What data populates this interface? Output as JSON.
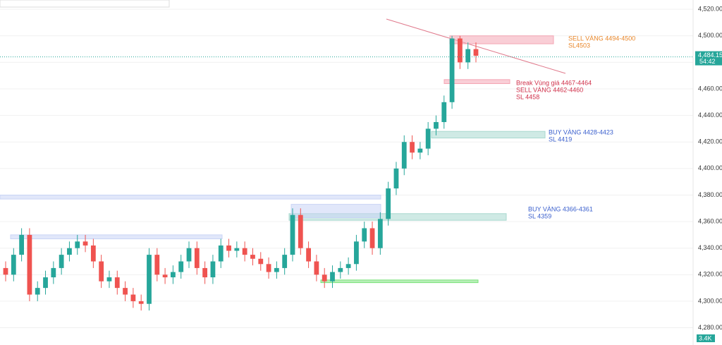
{
  "chart_data": {
    "type": "candlestick",
    "open": [
      4325,
      4320,
      4335,
      4350,
      4305,
      4310,
      4318,
      4325,
      4335,
      4340,
      4345,
      4342,
      4330,
      4315,
      4318,
      4310,
      4305,
      4300,
      4298,
      4335,
      4320,
      4318,
      4322,
      4330,
      4340,
      4325,
      4318,
      4330,
      4342,
      4338,
      4340,
      4335,
      4332,
      4328,
      4322,
      4325,
      4335,
      4365,
      4340,
      4330,
      4320,
      4315,
      4322,
      4325,
      4328,
      4345,
      4355,
      4340,
      4362,
      4385,
      4400,
      4420,
      4412,
      4415,
      4430,
      4435,
      4450,
      4498,
      4480,
      4490
    ],
    "high": [
      4330,
      4340,
      4355,
      4355,
      4315,
      4323,
      4330,
      4340,
      4345,
      4350,
      4350,
      4347,
      4335,
      4323,
      4323,
      4315,
      4310,
      4305,
      4340,
      4340,
      4325,
      4327,
      4335,
      4345,
      4345,
      4330,
      4335,
      4347,
      4347,
      4345,
      4345,
      4340,
      4337,
      4333,
      4330,
      4340,
      4370,
      4370,
      4345,
      4335,
      4325,
      4327,
      4330,
      4333,
      4350,
      4360,
      4360,
      4367,
      4390,
      4405,
      4425,
      4425,
      4420,
      4435,
      4440,
      4455,
      4500,
      4500,
      4495,
      4495
    ],
    "low": [
      4315,
      4315,
      4330,
      4300,
      4300,
      4305,
      4313,
      4320,
      4330,
      4335,
      4337,
      4325,
      4310,
      4310,
      4305,
      4300,
      4295,
      4293,
      4293,
      4315,
      4313,
      4313,
      4317,
      4325,
      4320,
      4313,
      4313,
      4325,
      4333,
      4333,
      4330,
      4327,
      4323,
      4317,
      4317,
      4320,
      4330,
      4335,
      4325,
      4315,
      4310,
      4310,
      4317,
      4320,
      4323,
      4340,
      4335,
      4335,
      4357,
      4380,
      4395,
      4407,
      4407,
      4410,
      4425,
      4430,
      4445,
      4475,
      4475,
      4480
    ],
    "close": [
      4320,
      4335,
      4350,
      4305,
      4310,
      4318,
      4325,
      4335,
      4340,
      4345,
      4342,
      4330,
      4315,
      4318,
      4310,
      4305,
      4300,
      4298,
      4335,
      4320,
      4318,
      4322,
      4330,
      4340,
      4325,
      4318,
      4330,
      4342,
      4338,
      4340,
      4335,
      4332,
      4328,
      4322,
      4325,
      4335,
      4365,
      4340,
      4330,
      4320,
      4315,
      4322,
      4325,
      4328,
      4345,
      4355,
      4340,
      4362,
      4385,
      4400,
      4420,
      4412,
      4415,
      4430,
      4435,
      4450,
      4498,
      4480,
      4490,
      4485
    ],
    "up_color": "#26a69a",
    "down_color": "#ef5350",
    "ylim": [
      4267,
      4527
    ],
    "yticks": [
      {
        "value": 4280,
        "label": "4,280.00"
      },
      {
        "value": 4300,
        "label": "4,300.00"
      },
      {
        "value": 4320,
        "label": "4,320.00"
      },
      {
        "value": 4340,
        "label": "4,340.00"
      },
      {
        "value": 4360,
        "label": "4,360.00"
      },
      {
        "value": 4380,
        "label": "4,380.00"
      },
      {
        "value": 4400,
        "label": "4,400.00"
      },
      {
        "value": 4420,
        "label": "4,420.00"
      },
      {
        "value": 4440,
        "label": "4,440.00"
      },
      {
        "value": 4460,
        "label": "4,460.00"
      },
      {
        "value": 4480,
        "label": "4,480.00"
      },
      {
        "value": 4500,
        "label": "4,500.00"
      },
      {
        "value": 4520,
        "label": "4,520.00"
      }
    ],
    "grid": true,
    "current_price": {
      "value": 4484.15,
      "label": "4,484.15"
    },
    "countdown": "54:42",
    "volume_label": "3.4K",
    "zones": [
      {
        "low": 4494,
        "high": 4500,
        "color": "#f4a6b4"
      },
      {
        "low": 4464,
        "high": 4467,
        "color": "#f4a6b4"
      },
      {
        "low": 4423,
        "high": 4428,
        "color": "#a8d8cf"
      },
      {
        "low": 4361,
        "high": 4366,
        "color": "#a8d8cf"
      },
      {
        "low": 4377,
        "high": 4380,
        "color": "#c9d4f5"
      },
      {
        "low": 4347,
        "high": 4350,
        "color": "#c9d4f5"
      },
      {
        "low": 4363,
        "high": 4373,
        "color": "#c9d4f5"
      },
      {
        "low": 4314,
        "high": 4316,
        "color": "#7be27b"
      }
    ],
    "annotations": [
      {
        "lines": [
          "SELL VÀNG 4494-4500",
          "SL4503"
        ],
        "color": "#e8862a"
      },
      {
        "lines": [
          "Break Vùng giá 4467-4464",
          "SELL VÀNG 4462-4460",
          "SL 4458"
        ],
        "color": "#d0304a"
      },
      {
        "lines": [
          "BUY VÀNG 4428-4423",
          "SL 4419"
        ],
        "color": "#3a5fcd"
      },
      {
        "lines": [
          "BUY VÀNG 4366-4361",
          "SL 4359"
        ],
        "color": "#3a5fcd"
      }
    ]
  }
}
